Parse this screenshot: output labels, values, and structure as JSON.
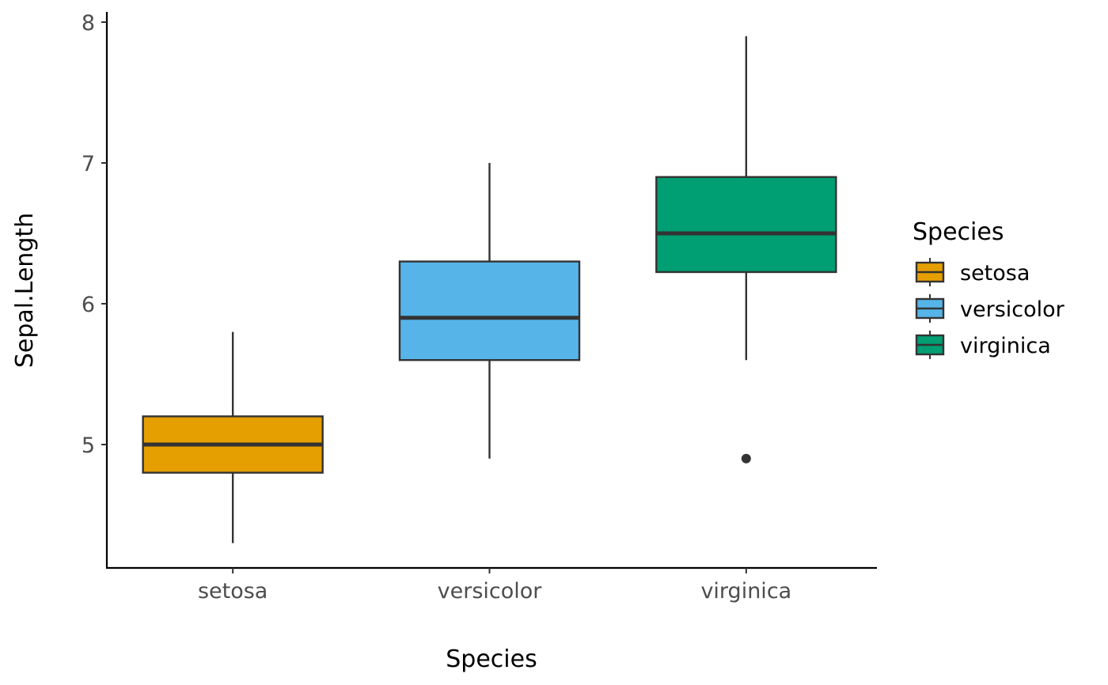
{
  "chart_data": {
    "type": "boxplot",
    "title": "",
    "xlabel": "Species",
    "ylabel": "Sepal.Length",
    "categories": [
      "setosa",
      "versicolor",
      "virginica"
    ],
    "ylim": [
      4.12,
      8.05
    ],
    "yticks": [
      5,
      6,
      7,
      8
    ],
    "ytick_labels": [
      "5",
      "6",
      "7",
      "8"
    ],
    "grid": false,
    "series": [
      {
        "name": "setosa",
        "color": "#E69F00",
        "whisker_low": 4.3,
        "q1": 4.8,
        "median": 5.0,
        "q3": 5.2,
        "whisker_high": 5.8,
        "outliers": []
      },
      {
        "name": "versicolor",
        "color": "#56B4E9",
        "whisker_low": 4.9,
        "q1": 5.6,
        "median": 5.9,
        "q3": 6.3,
        "whisker_high": 7.0,
        "outliers": []
      },
      {
        "name": "virginica",
        "color": "#009E73",
        "whisker_low": 5.6,
        "q1": 6.225,
        "median": 6.5,
        "q3": 6.9,
        "whisker_high": 7.9,
        "outliers": [
          4.9
        ]
      }
    ],
    "legend": {
      "title": "Species",
      "position": "right",
      "entries": [
        "setosa",
        "versicolor",
        "virginica"
      ]
    },
    "outline_color": "#333333"
  }
}
